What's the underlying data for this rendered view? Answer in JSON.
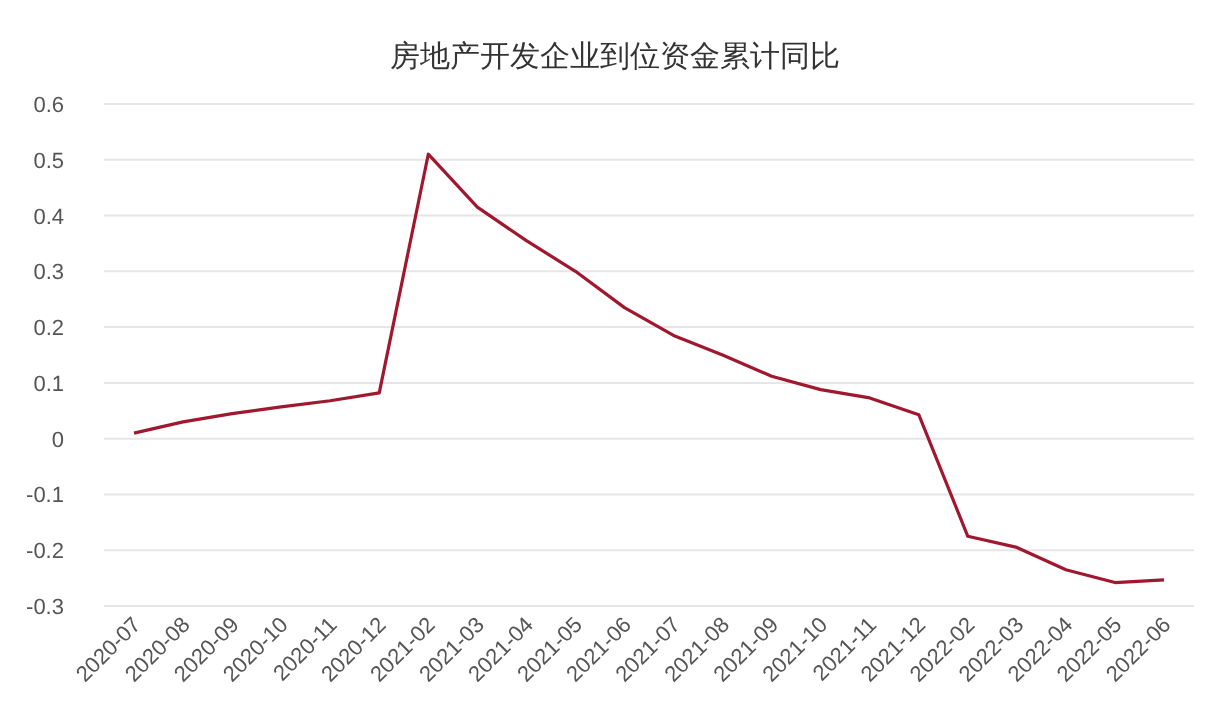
{
  "chart_data": {
    "type": "line",
    "title": "房地产开发企业到位资金累计同比",
    "categories": [
      "2020-07",
      "2020-08",
      "2020-09",
      "2020-10",
      "2020-11",
      "2020-12",
      "2021-02",
      "2021-03",
      "2021-04",
      "2021-05",
      "2021-06",
      "2021-07",
      "2021-08",
      "2021-09",
      "2021-10",
      "2021-11",
      "2021-12",
      "2022-02",
      "2022-03",
      "2022-04",
      "2022-05",
      "2022-06"
    ],
    "series": [
      {
        "color": "#a0182f",
        "values": [
          0.01,
          0.03,
          0.045,
          0.057,
          0.068,
          0.082,
          0.51,
          0.415,
          0.355,
          0.3,
          0.235,
          0.185,
          0.15,
          0.112,
          0.088,
          0.073,
          0.043,
          -0.175,
          -0.195,
          -0.235,
          -0.258,
          -0.253
        ]
      }
    ],
    "ylim": [
      -0.3,
      0.6
    ],
    "yticks": [
      -0.3,
      -0.2,
      -0.1,
      0,
      0.1,
      0.2,
      0.3,
      0.4,
      0.5,
      0.6
    ],
    "grid": "y",
    "marker": "none",
    "line_style": "solid"
  }
}
